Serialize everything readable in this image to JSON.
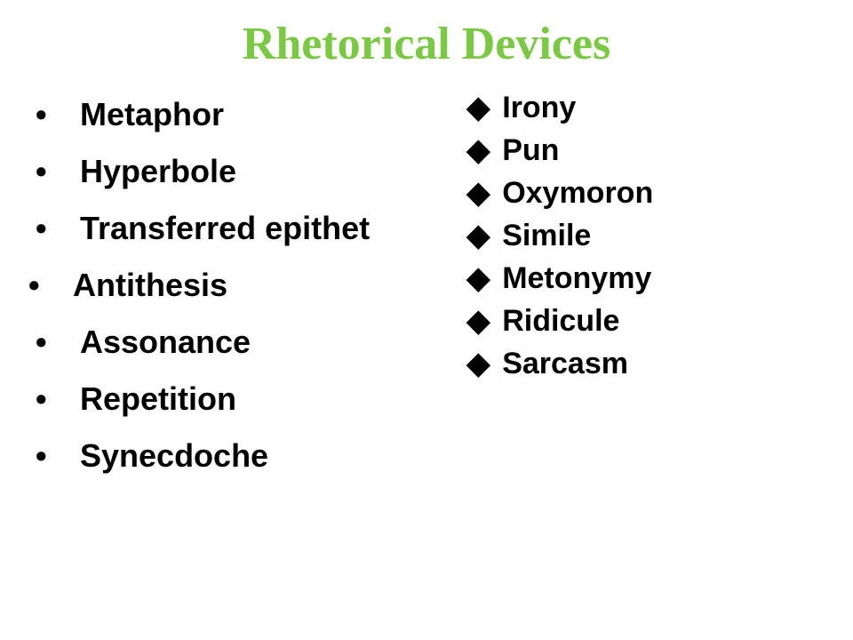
{
  "title": {
    "text": "Rhetorical Devices",
    "color": "#7ac943",
    "fontsize": 52
  },
  "leftColumn": {
    "bullet_type": "dot",
    "item_fontsize": 36,
    "line_height": 64,
    "bullet_color": "#000000",
    "bullet_width": 50,
    "items": [
      {
        "label": "Metaphor",
        "indent": 0
      },
      {
        "label": "Hyperbole",
        "indent": 0
      },
      {
        "label": "Transferred epithet",
        "indent": 0
      },
      {
        "label": "Antithesis",
        "indent": -8
      },
      {
        "label": "Assonance",
        "indent": 0
      },
      {
        "label": "Repetition",
        "indent": 0
      },
      {
        "label": "Synecdoche",
        "indent": 0
      }
    ]
  },
  "rightColumn": {
    "bullet_type": "diamond",
    "item_fontsize": 34,
    "line_height": 48,
    "bullet_color": "#000000",
    "bullet_width": 40,
    "items": [
      {
        "label": "Irony"
      },
      {
        "label": "Pun"
      },
      {
        "label": "Oxymoron"
      },
      {
        "label": "Simile"
      },
      {
        "label": "Metonymy"
      },
      {
        "label": "Ridicule"
      },
      {
        "label": "Sarcasm"
      }
    ]
  }
}
